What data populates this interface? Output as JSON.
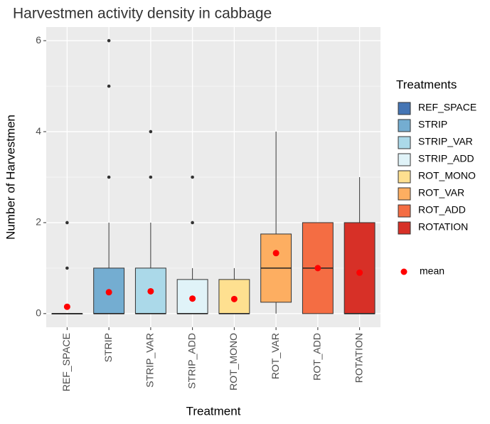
{
  "chart_data": {
    "type": "box",
    "title": "Harvestmen activity density in cabbage",
    "x_label": "Treatment",
    "y_label": "Number of Harvestmen",
    "legend_title": "Treatments",
    "mean_label": "mean",
    "mean_color": "#ff0000",
    "categories": [
      "REF_SPACE",
      "STRIP",
      "STRIP_VAR",
      "STRIP_ADD",
      "ROT_MONO",
      "ROT_VAR",
      "ROT_ADD",
      "ROTATION"
    ],
    "colors": [
      "#4575b4",
      "#74add1",
      "#abd9e9",
      "#e0f3f8",
      "#fee090",
      "#fdae61",
      "#f46d43",
      "#d73027"
    ],
    "whisker_low": [
      0,
      0,
      0,
      0,
      0,
      0,
      0,
      0
    ],
    "q1": [
      0,
      0,
      0,
      0,
      0,
      0.25,
      0,
      0
    ],
    "median": [
      0,
      0,
      0,
      0,
      0,
      1,
      1,
      0
    ],
    "q3": [
      0,
      1,
      1,
      0.75,
      0.75,
      1.75,
      2,
      2
    ],
    "whisker_high": [
      0,
      2,
      2,
      1,
      1,
      4,
      2,
      3
    ],
    "outliers": [
      [
        1,
        2
      ],
      [
        3,
        5,
        6
      ],
      [
        3,
        4
      ],
      [
        2,
        3
      ],
      [],
      [],
      [],
      []
    ],
    "mean": [
      0.15,
      0.47,
      0.49,
      0.33,
      0.32,
      1.33,
      1.0,
      0.9
    ],
    "ylim": [
      -0.3,
      6.3
    ],
    "yticks": [
      0,
      2,
      4,
      6
    ],
    "grid": true
  }
}
